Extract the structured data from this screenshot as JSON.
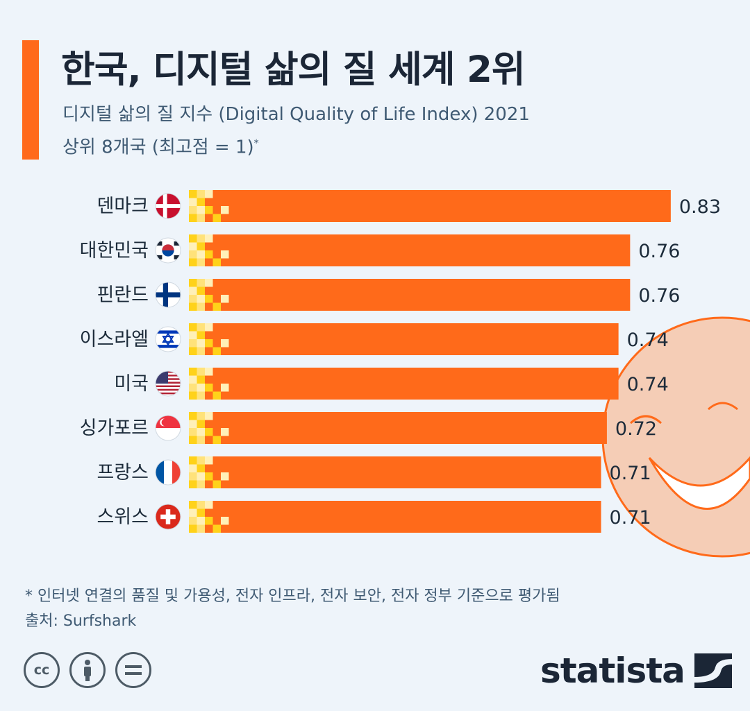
{
  "header": {
    "title": "한국, 디지털 삶의 질 세계 2위",
    "subtitle_line1": "디지털 삶의 질 지수 (Digital Quality of Life Index) 2021",
    "subtitle_line2": "상위 8개국 (최고점 = 1)",
    "subtitle_mark": "*"
  },
  "chart_data": {
    "type": "bar",
    "orientation": "horizontal",
    "categories": [
      "덴마크",
      "대한민국",
      "핀란드",
      "이스라엘",
      "미국",
      "싱가포르",
      "프랑스",
      "스위스"
    ],
    "values": [
      0.83,
      0.76,
      0.76,
      0.74,
      0.74,
      0.72,
      0.71,
      0.71
    ],
    "value_labels": [
      "0.83",
      "0.76",
      "0.76",
      "0.74",
      "0.74",
      "0.72",
      "0.71",
      "0.71"
    ],
    "xlim": [
      0,
      1
    ],
    "bar_color": "#ff6a1a",
    "pixel_pattern_colors": [
      "#ffd21a",
      "#ffe27a",
      "#fff0b8"
    ],
    "flag_icons": [
      "denmark-flag-icon",
      "south-korea-flag-icon",
      "finland-flag-icon",
      "israel-flag-icon",
      "usa-flag-icon",
      "singapore-flag-icon",
      "france-flag-icon",
      "switzerland-flag-icon"
    ],
    "grid": false
  },
  "footer": {
    "note": "* 인터넷 연결의 품질 및 가용성, 전자 인프라, 전자 보안, 전자 정부 기준으로 평가됨",
    "source": "출처: Surfshark",
    "cc_icon": "cc",
    "brand": "statista"
  },
  "decoration": {
    "smiley_color": "#f5cdb6",
    "smiley_stroke": "#ff6a1a"
  }
}
